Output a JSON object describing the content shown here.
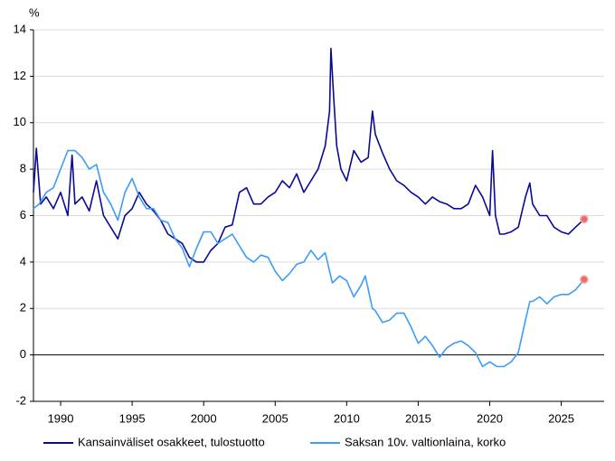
{
  "chart_data": {
    "type": "line",
    "y_label": "%",
    "xlim": [
      1988.1,
      2028.0
    ],
    "xticks": [
      1990,
      1995,
      2000,
      2005,
      2010,
      2015,
      2020,
      2025
    ],
    "ylim": [
      -2,
      14
    ],
    "yticks": [
      -2,
      0,
      2,
      4,
      6,
      8,
      10,
      12,
      14
    ],
    "grid": true,
    "series": [
      {
        "name": "Kansainväliset osakkeet, tulostuotto",
        "color": "#0a0a96",
        "x": [
          1988.1,
          1988.3,
          1988.6,
          1989,
          1989.5,
          1990,
          1990.5,
          1990.8,
          1991,
          1991.5,
          1992,
          1992.5,
          1993,
          1993.5,
          1994,
          1994.5,
          1995,
          1995.5,
          1996,
          1996.5,
          1997,
          1997.5,
          1998,
          1998.5,
          1999,
          1999.5,
          2000,
          2000.5,
          2001,
          2001.5,
          2002,
          2002.5,
          2003,
          2003.5,
          2004,
          2004.5,
          2005,
          2005.5,
          2006,
          2006.5,
          2007,
          2007.5,
          2008,
          2008.5,
          2008.8,
          2008.9,
          2009.1,
          2009.3,
          2009.6,
          2010,
          2010.5,
          2011,
          2011.5,
          2011.8,
          2012,
          2012.5,
          2013,
          2013.5,
          2014,
          2014.5,
          2015,
          2015.5,
          2016,
          2016.5,
          2017,
          2017.5,
          2018,
          2018.5,
          2019,
          2019.5,
          2020,
          2020.2,
          2020.4,
          2020.7,
          2021,
          2021.5,
          2022,
          2022.5,
          2022.8,
          2023,
          2023.5,
          2024,
          2024.5,
          2025,
          2025.5,
          2026,
          2026.6
        ],
        "values": [
          7.0,
          8.9,
          6.5,
          6.8,
          6.3,
          7.0,
          6.0,
          8.6,
          6.5,
          6.8,
          6.2,
          7.5,
          6.0,
          5.5,
          5.0,
          6.0,
          6.3,
          7.0,
          6.5,
          6.2,
          5.8,
          5.2,
          5.0,
          4.8,
          4.2,
          4.0,
          4.0,
          4.5,
          4.8,
          5.5,
          5.6,
          7.0,
          7.2,
          6.5,
          6.5,
          6.8,
          7.0,
          7.5,
          7.2,
          7.8,
          7.0,
          7.5,
          8.0,
          9.0,
          10.5,
          13.2,
          11.0,
          9.0,
          8.0,
          7.5,
          8.8,
          8.3,
          8.5,
          10.5,
          9.5,
          8.7,
          8.0,
          7.5,
          7.3,
          7.0,
          6.8,
          6.5,
          6.8,
          6.6,
          6.5,
          6.3,
          6.3,
          6.5,
          7.3,
          6.8,
          6.0,
          8.8,
          6.0,
          5.2,
          5.2,
          5.3,
          5.5,
          6.8,
          7.4,
          6.5,
          6.0,
          6.0,
          5.5,
          5.3,
          5.2,
          5.5,
          5.85
        ]
      },
      {
        "name": "Saksan 10v. valtionlaina, korko",
        "color": "#3d9cf5",
        "x": [
          1988.1,
          1988.5,
          1989,
          1989.5,
          1990,
          1990.5,
          1991,
          1991.5,
          1992,
          1992.5,
          1993,
          1993.5,
          1994,
          1994.5,
          1995,
          1995.5,
          1996,
          1996.5,
          1997,
          1997.5,
          1998,
          1998.5,
          1999,
          1999.5,
          2000,
          2000.5,
          2001,
          2001.5,
          2002,
          2002.5,
          2003,
          2003.5,
          2004,
          2004.5,
          2005,
          2005.5,
          2006,
          2006.5,
          2007,
          2007.5,
          2008,
          2008.5,
          2009,
          2009.5,
          2010,
          2010.5,
          2011,
          2011.3,
          2011.8,
          2012,
          2012.5,
          2013,
          2013.5,
          2014,
          2014.5,
          2015,
          2015.5,
          2016,
          2016.5,
          2017,
          2017.5,
          2018,
          2018.5,
          2019,
          2019.5,
          2020,
          2020.5,
          2021,
          2021.5,
          2022,
          2022.5,
          2022.8,
          2023,
          2023.5,
          2024,
          2024.5,
          2025,
          2025.5,
          2026,
          2026.6
        ],
        "values": [
          6.3,
          6.5,
          7.0,
          7.2,
          8.0,
          8.8,
          8.8,
          8.5,
          8.0,
          8.2,
          7.0,
          6.5,
          5.8,
          7.0,
          7.6,
          6.8,
          6.3,
          6.3,
          5.8,
          5.7,
          5.0,
          4.6,
          3.8,
          4.6,
          5.3,
          5.3,
          4.8,
          5.0,
          5.2,
          4.7,
          4.2,
          4.0,
          4.3,
          4.2,
          3.6,
          3.2,
          3.5,
          3.9,
          4.0,
          4.5,
          4.1,
          4.4,
          3.1,
          3.4,
          3.2,
          2.5,
          3.0,
          3.4,
          2.0,
          1.9,
          1.4,
          1.5,
          1.8,
          1.8,
          1.2,
          0.5,
          0.8,
          0.4,
          -0.1,
          0.3,
          0.5,
          0.6,
          0.4,
          0.1,
          -0.5,
          -0.3,
          -0.5,
          -0.5,
          -0.3,
          0.1,
          1.5,
          2.3,
          2.3,
          2.5,
          2.2,
          2.5,
          2.6,
          2.6,
          2.8,
          3.25
        ]
      }
    ]
  }
}
